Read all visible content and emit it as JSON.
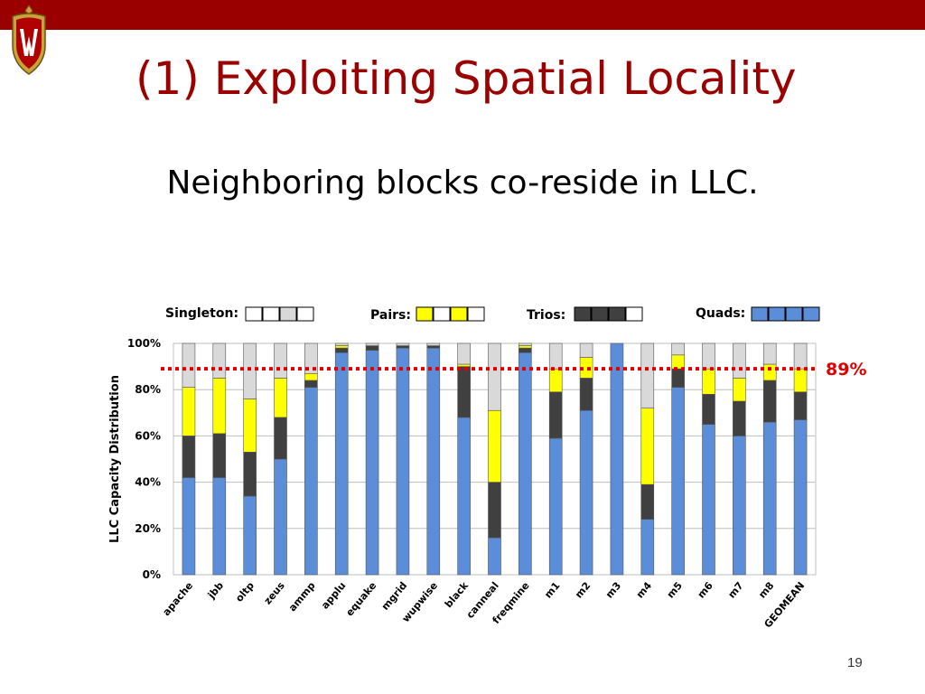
{
  "slide": {
    "title": "(1) Exploiting Spatial Locality",
    "subtitle": "Neighboring blocks co-reside in LLC.",
    "number": "19"
  },
  "colors": {
    "topbar": "#9b0000",
    "title": "#9b0000",
    "quads": "#5b8dd9",
    "trios": "#404040",
    "pairs": "#ffff00",
    "singleton": "#d9d9d9",
    "reference_line": "#e00000"
  },
  "chart_data": {
    "type": "bar",
    "stacked": true,
    "ylabel": "LLC Capacity Distribution",
    "ylim": [
      0,
      100
    ],
    "yticks": [
      "0%",
      "20%",
      "40%",
      "60%",
      "80%",
      "100%"
    ],
    "categories": [
      "apache",
      "jbb",
      "oltp",
      "zeus",
      "ammp",
      "applu",
      "equake",
      "mgrid",
      "wupwise",
      "black",
      "canneal",
      "freqmine",
      "m1",
      "m2",
      "m3",
      "m4",
      "m5",
      "m6",
      "m7",
      "m8",
      "GEOMEAN"
    ],
    "series": [
      {
        "name": "Quads",
        "color": "#5b8dd9",
        "values": [
          42,
          42,
          34,
          50,
          81,
          96,
          97,
          98,
          98,
          68,
          16,
          96,
          59,
          71,
          100,
          24,
          81,
          65,
          60,
          66,
          67
        ]
      },
      {
        "name": "Trios",
        "color": "#404040",
        "values": [
          18,
          19,
          19,
          18,
          3,
          2,
          2,
          1,
          1,
          22,
          24,
          2,
          20,
          14,
          0,
          15,
          8,
          13,
          15,
          18,
          12
        ]
      },
      {
        "name": "Pairs",
        "color": "#ffff00",
        "values": [
          21,
          24,
          23,
          17,
          3,
          1,
          0,
          0,
          0,
          1,
          31,
          1,
          10,
          9,
          0,
          33,
          6,
          11,
          10,
          7,
          10
        ]
      },
      {
        "name": "Singleton",
        "color": "#d9d9d9",
        "values": [
          19,
          15,
          24,
          15,
          13,
          1,
          1,
          1,
          1,
          9,
          29,
          1,
          11,
          6,
          0,
          28,
          5,
          11,
          15,
          9,
          11
        ]
      }
    ],
    "reference_line": {
      "value": 89,
      "label": "89%"
    },
    "legend": [
      {
        "label": "Singleton:",
        "cells": [
          "#ffffff",
          "#ffffff",
          "#d9d9d9",
          "#ffffff"
        ]
      },
      {
        "label": "Pairs:",
        "cells": [
          "#ffff00",
          "#ffffff",
          "#ffff00",
          "#ffffff"
        ]
      },
      {
        "label": "Trios:",
        "cells": [
          "#404040",
          "#404040",
          "#404040",
          "#ffffff"
        ]
      },
      {
        "label": "Quads:",
        "cells": [
          "#5b8dd9",
          "#5b8dd9",
          "#5b8dd9",
          "#5b8dd9"
        ]
      }
    ],
    "legend_position": "top",
    "grid": true
  }
}
